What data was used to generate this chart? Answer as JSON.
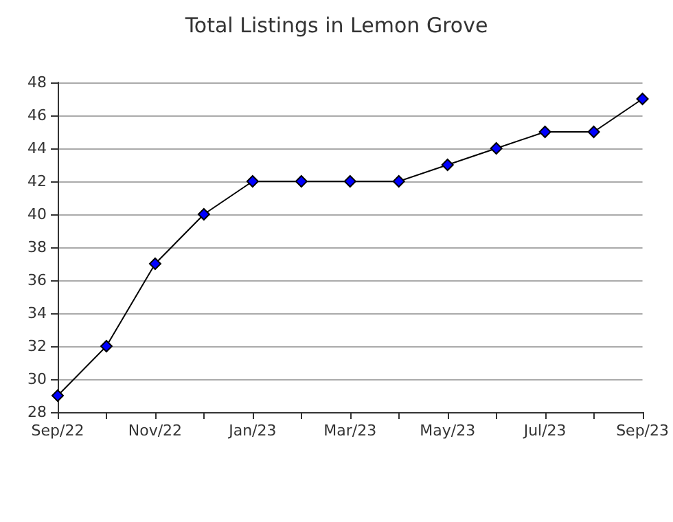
{
  "chart_data": {
    "type": "line",
    "title": "Total Listings in Lemon Grove",
    "categories": [
      "Sep/22",
      null,
      "Nov/22",
      null,
      "Jan/23",
      null,
      "Mar/23",
      null,
      "May/23",
      null,
      "Jul/23",
      null,
      "Sep/23"
    ],
    "series": [
      {
        "color": "#0000ff",
        "values": [
          29,
          32,
          37,
          40,
          42,
          42,
          42,
          42,
          43,
          44,
          45,
          45,
          47
        ]
      }
    ],
    "ylim": [
      28,
      48
    ],
    "yticks": [
      28,
      30,
      32,
      34,
      36,
      38,
      40,
      42,
      44,
      46,
      48
    ],
    "grid": "y",
    "marker": "diamond",
    "line_style": "solid"
  }
}
